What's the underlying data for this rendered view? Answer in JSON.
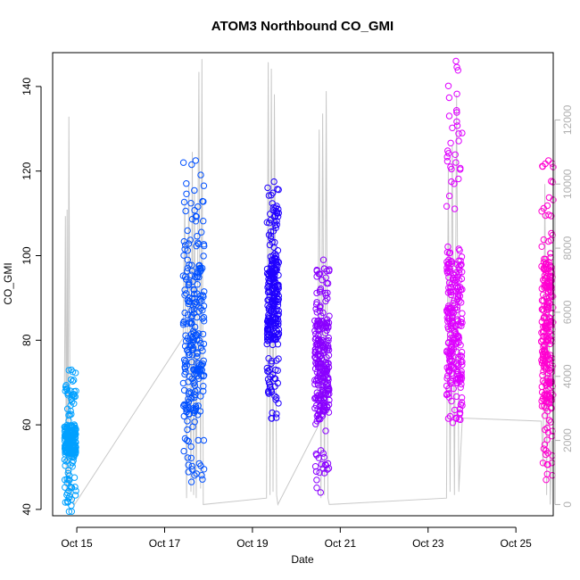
{
  "chart_data": {
    "type": "scatter",
    "title": "ATOM3 Northbound CO_GMI",
    "xlabel": "Date",
    "ylabel": "CO_GMI",
    "x_unit": "days (October)",
    "xlim": [
      14.45,
      25.85
    ],
    "ylim": [
      38.5,
      148
    ],
    "y2lim": [
      -350,
      14100
    ],
    "x_ticks": [
      {
        "value": 15,
        "label": "Oct 15"
      },
      {
        "value": 17,
        "label": "Oct 17"
      },
      {
        "value": 19,
        "label": "Oct 19"
      },
      {
        "value": 21,
        "label": "Oct 21"
      },
      {
        "value": 23,
        "label": "Oct 23"
      },
      {
        "value": 25,
        "label": "Oct 25"
      }
    ],
    "y_ticks": [
      40,
      60,
      80,
      100,
      120,
      140
    ],
    "y2_ticks": [
      0,
      2000,
      4000,
      6000,
      8000,
      10000,
      12000
    ],
    "grid": false,
    "colors": {
      "flight1": "#00a0ff",
      "flight2": "#0050ff",
      "flight3": "#2000ff",
      "flight4": "#8a00ff",
      "flight5": "#de00ff",
      "flight6": "#ff00d0",
      "altitude": "#c8c8c8"
    },
    "series": [
      {
        "key": "flight1",
        "x_range": [
          14.72,
          14.98
        ],
        "base": [
          53,
          60
        ],
        "min": 39.5,
        "max": 73
      },
      {
        "key": "flight2",
        "x_range": [
          17.42,
          17.9
        ],
        "base": [
          62,
          98
        ],
        "min": 46.5,
        "max": 122.5
      },
      {
        "key": "flight3",
        "x_range": [
          19.33,
          19.6
        ],
        "base": [
          80,
          100
        ],
        "min": 61.5,
        "max": 117.5
      },
      {
        "key": "flight4",
        "x_range": [
          20.42,
          20.75
        ],
        "base": [
          62,
          85
        ],
        "min": 44,
        "max": 99
      },
      {
        "key": "flight5",
        "x_range": [
          23.42,
          23.78
        ],
        "base": [
          70,
          100
        ],
        "min": 60.5,
        "max": 146
      },
      {
        "key": "flight6",
        "x_range": [
          25.58,
          25.85
        ],
        "base": [
          65,
          100
        ],
        "min": 47,
        "max": 122.5
      }
    ],
    "altitude_path": [
      [
        14.72,
        3800
      ],
      [
        14.74,
        9000
      ],
      [
        14.76,
        500
      ],
      [
        14.78,
        9200
      ],
      [
        14.8,
        300
      ],
      [
        14.82,
        12100
      ],
      [
        14.85,
        800
      ],
      [
        14.9,
        200
      ],
      [
        14.95,
        0
      ],
      [
        17.42,
        5200
      ],
      [
        17.46,
        9500
      ],
      [
        17.5,
        200
      ],
      [
        17.55,
        10100
      ],
      [
        17.6,
        400
      ],
      [
        17.63,
        11000
      ],
      [
        17.66,
        300
      ],
      [
        17.68,
        9800
      ],
      [
        17.72,
        200
      ],
      [
        17.78,
        13500
      ],
      [
        17.82,
        500
      ],
      [
        17.85,
        13900
      ],
      [
        17.88,
        0
      ],
      [
        19.32,
        200
      ],
      [
        19.36,
        13800
      ],
      [
        19.4,
        300
      ],
      [
        19.43,
        13600
      ],
      [
        19.47,
        400
      ],
      [
        19.5,
        12800
      ],
      [
        19.55,
        300
      ],
      [
        19.58,
        0
      ],
      [
        20.48,
        2400
      ],
      [
        20.52,
        11700
      ],
      [
        20.56,
        200
      ],
      [
        20.6,
        12200
      ],
      [
        20.64,
        300
      ],
      [
        20.68,
        12900
      ],
      [
        20.72,
        200
      ],
      [
        20.75,
        0
      ],
      [
        23.42,
        200
      ],
      [
        23.46,
        10500
      ],
      [
        23.5,
        400
      ],
      [
        23.55,
        11200
      ],
      [
        23.6,
        300
      ],
      [
        23.65,
        12800
      ],
      [
        23.7,
        400
      ],
      [
        23.78,
        2700
      ],
      [
        25.58,
        2600
      ],
      [
        25.62,
        1200
      ],
      [
        25.66,
        10000
      ],
      [
        25.7,
        300
      ],
      [
        25.74,
        7900
      ],
      [
        25.78,
        0
      ],
      [
        25.82,
        2000
      ]
    ]
  }
}
